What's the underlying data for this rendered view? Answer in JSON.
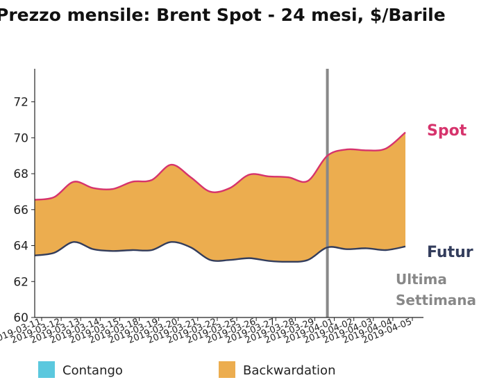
{
  "chart_data": {
    "type": "area",
    "title": "Prezzo mensile: Brent Spot - 24 mesi, $/Barile",
    "xlabel": "",
    "ylabel": "",
    "x": [
      "2019-03-11",
      "2019-03-12",
      "2019-03-13",
      "2019-03-14",
      "2019-03-15",
      "2019-03-18",
      "2019-03-19",
      "2019-03-20",
      "2019-03-21",
      "2019-03-22",
      "2019-03-25",
      "2019-03-26",
      "2019-03-27",
      "2019-03-28",
      "2019-03-29",
      "2019-04-01",
      "2019-04-02",
      "2019-04-03",
      "2019-04-04",
      "2019-04-05"
    ],
    "ylim": [
      60,
      73.8
    ],
    "y_ticks": [
      60,
      62,
      64,
      66,
      68,
      70,
      72
    ],
    "grid": false,
    "series": [
      {
        "name": "Spot",
        "color": "#d6336c",
        "values": [
          66.55,
          66.7,
          67.55,
          67.2,
          67.15,
          67.55,
          67.65,
          68.5,
          67.8,
          67.0,
          67.2,
          67.95,
          67.85,
          67.8,
          67.6,
          69.0,
          69.35,
          69.3,
          69.4,
          70.3
        ]
      },
      {
        "name": "Futur",
        "color": "#333d5c",
        "values": [
          63.45,
          63.6,
          64.2,
          63.8,
          63.7,
          63.75,
          63.75,
          64.2,
          63.9,
          63.2,
          63.2,
          63.3,
          63.15,
          63.1,
          63.2,
          63.9,
          63.8,
          63.85,
          63.75,
          63.95
        ]
      }
    ],
    "fill_color": "#ecad4f",
    "vline": {
      "x": "2019-04-01",
      "label": "Ultima Settimana",
      "color": "#888888"
    },
    "legend": {
      "position": "bottom",
      "items": [
        {
          "label": "Contango",
          "color": "#5bc8de"
        },
        {
          "label": "Backwardation",
          "color": "#ecad4f"
        }
      ]
    }
  }
}
